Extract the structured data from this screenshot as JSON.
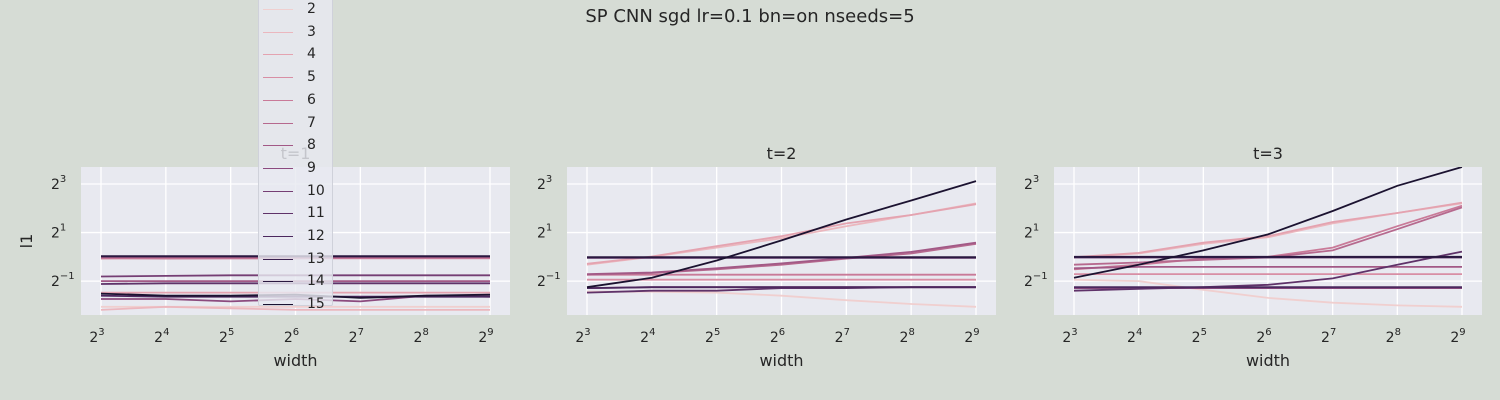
{
  "suptitle": "SP CNN sgd lr=0.1 bn=on nseeds=5",
  "legend": {
    "entries": [
      "2",
      "3",
      "4",
      "5",
      "6",
      "7",
      "8",
      "9",
      "10",
      "11",
      "12",
      "13",
      "14",
      "15"
    ],
    "colors": [
      "#f0cfcf",
      "#ebb7be",
      "#e4a3b0",
      "#d88ea4",
      "#c97a98",
      "#b6698e",
      "#a25986",
      "#8c4a7e",
      "#753e74",
      "#5f3269",
      "#4b285e",
      "#3a1f4f",
      "#2a1840",
      "#1b1230"
    ]
  },
  "chart_data": [
    {
      "type": "line",
      "title": "t=1",
      "xlabel": "width",
      "ylabel": "l1",
      "xscale": "log2",
      "yscale": "log2",
      "x": [
        8,
        16,
        32,
        64,
        128,
        256,
        512
      ],
      "xticklabels": [
        "2",
        "2",
        "2",
        "2",
        "2",
        "2",
        "2"
      ],
      "xtickexp": [
        "3",
        "4",
        "5",
        "6",
        "7",
        "8",
        "9"
      ],
      "ytickvals": [
        0.5,
        2,
        8
      ],
      "yticklabels": [
        "2",
        "2",
        "2"
      ],
      "ytickexp": [
        "−1",
        "1",
        "3"
      ],
      "ylim": [
        0.19,
        13
      ],
      "grid": true,
      "series": [
        {
          "name": "2",
          "values": [
            0.24,
            0.24,
            0.24,
            0.24,
            0.24,
            0.24,
            0.24
          ]
        },
        {
          "name": "3",
          "values": [
            0.22,
            0.24,
            0.23,
            0.22,
            0.22,
            0.22,
            0.22
          ]
        },
        {
          "name": "4",
          "values": [
            0.36,
            0.36,
            0.36,
            0.36,
            0.36,
            0.36,
            0.36
          ]
        },
        {
          "name": "5",
          "values": [
            0.95,
            0.96,
            0.96,
            0.96,
            0.96,
            0.96,
            0.96
          ]
        },
        {
          "name": "6",
          "values": [
            0.97,
            0.95,
            0.96,
            0.96,
            0.97,
            0.97,
            0.97
          ]
        },
        {
          "name": "7",
          "values": [
            0.98,
            0.99,
            0.98,
            0.98,
            0.98,
            0.98,
            0.98
          ]
        },
        {
          "name": "8",
          "values": [
            0.5,
            0.5,
            0.5,
            0.5,
            0.5,
            0.5,
            0.5
          ]
        },
        {
          "name": "9",
          "values": [
            0.3,
            0.3,
            0.28,
            0.3,
            0.28,
            0.33,
            0.32
          ]
        },
        {
          "name": "10",
          "values": [
            0.57,
            0.58,
            0.59,
            0.59,
            0.59,
            0.59,
            0.59
          ]
        },
        {
          "name": "11",
          "values": [
            0.46,
            0.47,
            0.47,
            0.47,
            0.47,
            0.47,
            0.47
          ]
        },
        {
          "name": "12",
          "values": [
            0.33,
            0.32,
            0.32,
            0.32,
            0.32,
            0.32,
            0.32
          ]
        },
        {
          "name": "13",
          "values": [
            1.01,
            1.01,
            1.01,
            1.01,
            1.01,
            1.01,
            1.01
          ]
        },
        {
          "name": "14",
          "values": [
            1.02,
            1.02,
            1.02,
            1.02,
            1.02,
            1.02,
            1.02
          ]
        },
        {
          "name": "15",
          "values": [
            0.35,
            0.33,
            0.33,
            0.34,
            0.31,
            0.33,
            0.34
          ]
        }
      ]
    },
    {
      "type": "line",
      "title": "t=2",
      "xlabel": "width",
      "ylabel": "",
      "xscale": "log2",
      "yscale": "log2",
      "x": [
        8,
        16,
        32,
        64,
        128,
        256,
        512
      ],
      "xticklabels": [
        "2",
        "2",
        "2",
        "2",
        "2",
        "2",
        "2"
      ],
      "xtickexp": [
        "3",
        "4",
        "5",
        "6",
        "7",
        "8",
        "9"
      ],
      "ytickvals": [
        0.5,
        2,
        8
      ],
      "yticklabels": [
        "2",
        "2",
        "2"
      ],
      "ytickexp": [
        "−1",
        "1",
        "3"
      ],
      "ylim": [
        0.19,
        13
      ],
      "grid": true,
      "series": [
        {
          "name": "2",
          "values": [
            0.37,
            0.37,
            0.36,
            0.33,
            0.29,
            0.26,
            0.24
          ]
        },
        {
          "name": "3",
          "values": [
            0.8,
            1.0,
            1.3,
            1.7,
            2.4,
            3.3,
            4.6
          ]
        },
        {
          "name": "4",
          "values": [
            0.82,
            1.01,
            1.36,
            1.8,
            2.6,
            3.3,
            4.5
          ]
        },
        {
          "name": "5",
          "values": [
            0.52,
            0.52,
            0.52,
            0.52,
            0.52,
            0.52,
            0.52
          ]
        },
        {
          "name": "6",
          "values": [
            0.6,
            0.6,
            0.6,
            0.6,
            0.6,
            0.6,
            0.6
          ]
        },
        {
          "name": "7",
          "values": [
            0.6,
            0.63,
            0.7,
            0.8,
            0.95,
            1.1,
            1.45
          ]
        },
        {
          "name": "8",
          "values": [
            0.61,
            0.64,
            0.72,
            0.83,
            0.97,
            1.15,
            1.5
          ]
        },
        {
          "name": "9",
          "values": [
            0.41,
            0.42,
            0.42,
            0.42,
            0.42,
            0.42,
            0.42
          ]
        },
        {
          "name": "10",
          "values": [
            0.97,
            0.97,
            0.97,
            0.97,
            0.97,
            0.97,
            0.97
          ]
        },
        {
          "name": "11",
          "values": [
            0.36,
            0.38,
            0.38,
            0.41,
            0.41,
            0.42,
            0.42
          ]
        },
        {
          "name": "12",
          "values": [
            0.41,
            0.42,
            0.42,
            0.42,
            0.42,
            0.42,
            0.42
          ]
        },
        {
          "name": "13",
          "values": [
            0.98,
            0.98,
            0.98,
            0.98,
            0.98,
            0.98,
            0.98
          ]
        },
        {
          "name": "14",
          "values": [
            0.99,
            0.99,
            0.99,
            0.99,
            0.99,
            0.99,
            0.99
          ]
        },
        {
          "name": "15",
          "values": [
            0.42,
            0.55,
            0.9,
            1.6,
            2.9,
            5.0,
            8.7
          ]
        }
      ]
    },
    {
      "type": "line",
      "title": "t=3",
      "xlabel": "width",
      "ylabel": "",
      "xscale": "log2",
      "yscale": "log2",
      "x": [
        8,
        16,
        32,
        64,
        128,
        256,
        512
      ],
      "xticklabels": [
        "2",
        "2",
        "2",
        "2",
        "2",
        "2",
        "2"
      ],
      "xtickexp": [
        "3",
        "4",
        "5",
        "6",
        "7",
        "8",
        "9"
      ],
      "ytickvals": [
        0.5,
        2,
        8
      ],
      "yticklabels": [
        "2",
        "2",
        "2"
      ],
      "ytickexp": [
        "−1",
        "1",
        "3"
      ],
      "ylim": [
        0.19,
        13
      ],
      "grid": true,
      "series": [
        {
          "name": "2",
          "values": [
            0.52,
            0.5,
            0.39,
            0.31,
            0.27,
            0.25,
            0.24
          ]
        },
        {
          "name": "3",
          "values": [
            0.98,
            1.1,
            1.45,
            1.75,
            2.6,
            3.5,
            4.6
          ]
        },
        {
          "name": "4",
          "values": [
            0.99,
            1.12,
            1.5,
            1.8,
            2.7,
            3.5,
            4.7
          ]
        },
        {
          "name": "5",
          "values": [
            0.61,
            0.61,
            0.61,
            0.61,
            0.61,
            0.61,
            0.61
          ]
        },
        {
          "name": "6",
          "values": [
            0.7,
            0.8,
            0.95,
            1.0,
            1.3,
            2.4,
            4.3
          ]
        },
        {
          "name": "7",
          "values": [
            0.8,
            0.85,
            0.92,
            0.98,
            1.2,
            2.2,
            4.1
          ]
        },
        {
          "name": "8",
          "values": [
            0.72,
            0.75,
            0.75,
            0.75,
            0.75,
            0.75,
            0.75
          ]
        },
        {
          "name": "9",
          "values": [
            0.41,
            0.41,
            0.41,
            0.41,
            0.41,
            0.41,
            0.41
          ]
        },
        {
          "name": "10",
          "values": [
            0.98,
            0.98,
            0.98,
            0.98,
            0.98,
            0.98,
            0.98
          ]
        },
        {
          "name": "11",
          "values": [
            0.38,
            0.4,
            0.42,
            0.45,
            0.54,
            0.8,
            1.16
          ]
        },
        {
          "name": "12",
          "values": [
            0.42,
            0.42,
            0.42,
            0.42,
            0.42,
            0.42,
            0.42
          ]
        },
        {
          "name": "13",
          "values": [
            0.99,
            0.99,
            0.99,
            0.99,
            0.99,
            0.99,
            0.99
          ]
        },
        {
          "name": "14",
          "values": [
            1.0,
            1.0,
            1.0,
            1.0,
            1.0,
            1.0,
            1.0
          ]
        },
        {
          "name": "15",
          "values": [
            0.55,
            0.8,
            1.2,
            1.9,
            3.7,
            7.6,
            13
          ]
        }
      ]
    }
  ]
}
